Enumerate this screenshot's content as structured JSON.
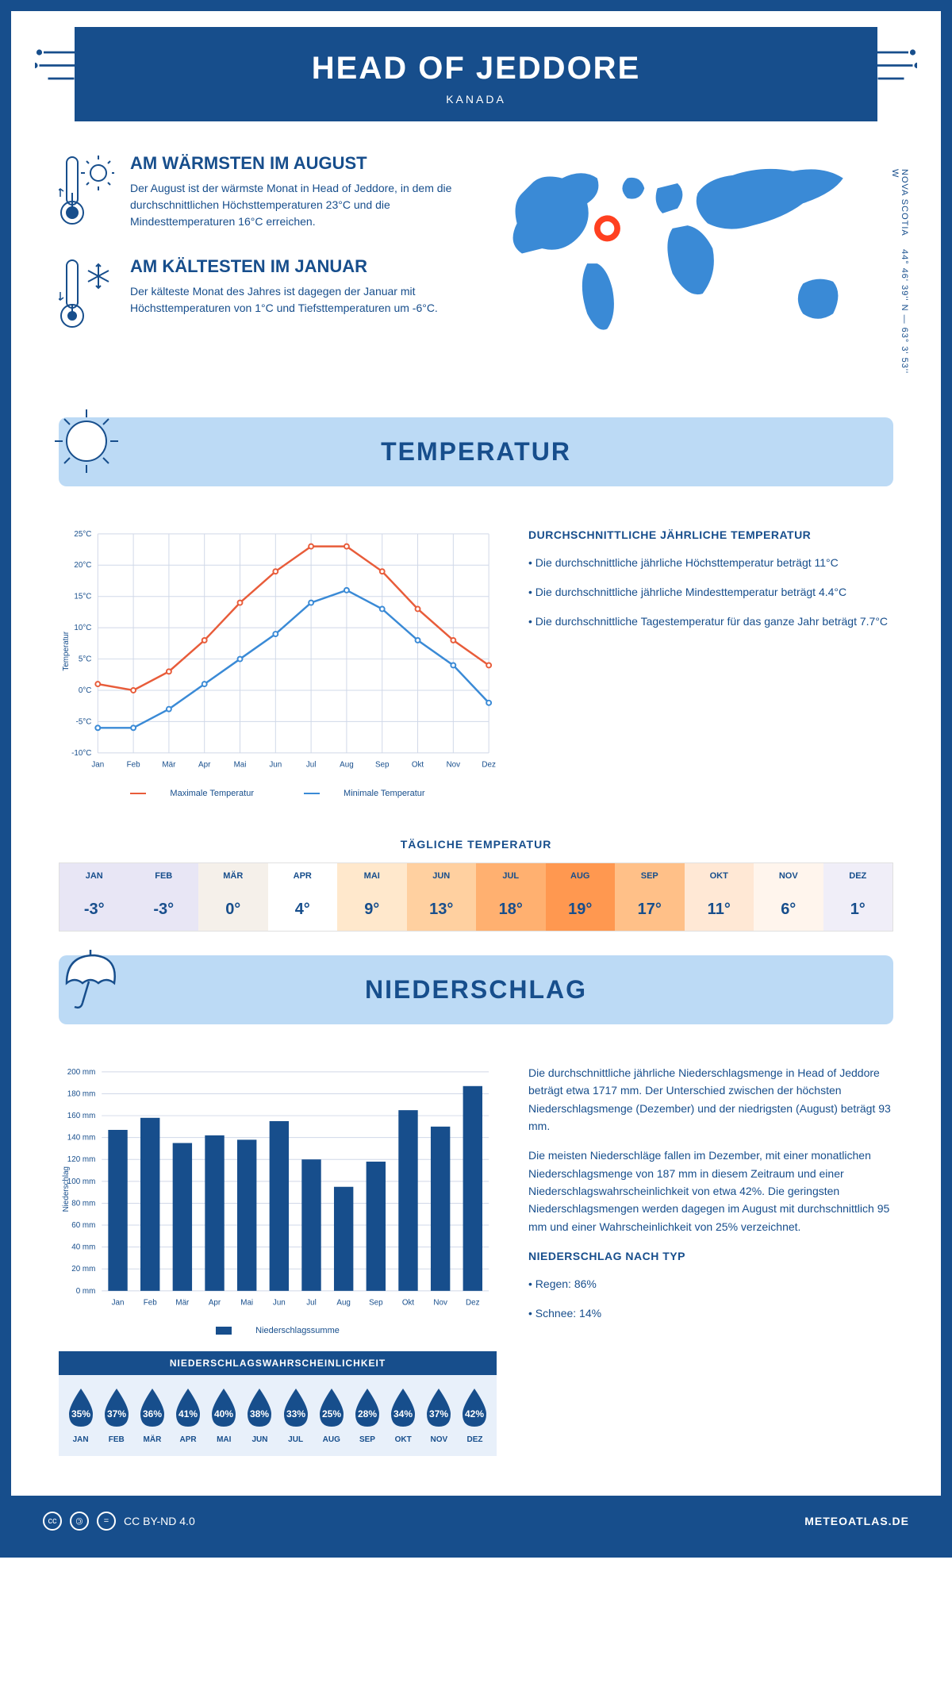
{
  "header": {
    "title": "HEAD OF JEDDORE",
    "subtitle": "KANADA"
  },
  "coords": {
    "region": "NOVA SCOTIA",
    "lat": "44° 46' 39'' N",
    "lon": "63° 3' 53'' W"
  },
  "facts": {
    "warm": {
      "heading": "AM WÄRMSTEN IM AUGUST",
      "text": "Der August ist der wärmste Monat in Head of Jeddore, in dem die durchschnittlichen Höchsttemperaturen 23°C und die Mindesttemperaturen 16°C erreichen."
    },
    "cold": {
      "heading": "AM KÄLTESTEN IM JANUAR",
      "text": "Der kälteste Monat des Jahres ist dagegen der Januar mit Höchsttemperaturen von 1°C und Tiefsttemperaturen um -6°C."
    }
  },
  "temperature_section": {
    "title": "TEMPERATUR",
    "chart": {
      "type": "line",
      "months": [
        "Jan",
        "Feb",
        "Mär",
        "Apr",
        "Mai",
        "Jun",
        "Jul",
        "Aug",
        "Sep",
        "Okt",
        "Nov",
        "Dez"
      ],
      "max_values": [
        1,
        0,
        3,
        8,
        14,
        19,
        23,
        23,
        19,
        13,
        8,
        4
      ],
      "min_values": [
        -6,
        -6,
        -3,
        1,
        5,
        9,
        14,
        16,
        13,
        8,
        4,
        -2
      ],
      "max_color": "#e85c3a",
      "min_color": "#3a8ad6",
      "ylim": [
        -10,
        25
      ],
      "ytick_step": 5,
      "ylabel": "Temperatur",
      "grid_color": "#d0d8e8",
      "background": "#ffffff",
      "legend_max": "Maximale Temperatur",
      "legend_min": "Minimale Temperatur"
    },
    "summary_heading": "DURCHSCHNITTLICHE JÄHRLICHE TEMPERATUR",
    "summary_points": [
      "• Die durchschnittliche jährliche Höchsttemperatur beträgt 11°C",
      "• Die durchschnittliche jährliche Mindesttemperatur beträgt 4.4°C",
      "• Die durchschnittliche Tagestemperatur für das ganze Jahr beträgt 7.7°C"
    ],
    "daily_title": "TÄGLICHE TEMPERATUR",
    "daily_temps": {
      "months": [
        "JAN",
        "FEB",
        "MÄR",
        "APR",
        "MAI",
        "JUN",
        "JUL",
        "AUG",
        "SEP",
        "OKT",
        "NOV",
        "DEZ"
      ],
      "values": [
        "-3°",
        "-3°",
        "0°",
        "4°",
        "9°",
        "13°",
        "18°",
        "19°",
        "17°",
        "11°",
        "6°",
        "1°"
      ],
      "colors": [
        "#e8e6f5",
        "#e8e6f5",
        "#f5f0ea",
        "#ffffff",
        "#ffe8cc",
        "#ffd0a0",
        "#ffb070",
        "#ff9850",
        "#ffc088",
        "#ffe8d5",
        "#fff5ed",
        "#f0eef8"
      ]
    }
  },
  "precip_section": {
    "title": "NIEDERSCHLAG",
    "chart": {
      "type": "bar",
      "months": [
        "Jan",
        "Feb",
        "Mär",
        "Apr",
        "Mai",
        "Jun",
        "Jul",
        "Aug",
        "Sep",
        "Okt",
        "Nov",
        "Dez"
      ],
      "values": [
        147,
        158,
        135,
        142,
        138,
        155,
        120,
        95,
        118,
        165,
        150,
        187
      ],
      "bar_color": "#174e8c",
      "ylim": [
        0,
        200
      ],
      "ytick_step": 20,
      "ylabel": "Niederschlag",
      "grid_color": "#d0d8e8",
      "legend": "Niederschlagssumme"
    },
    "text1": "Die durchschnittliche jährliche Niederschlagsmenge in Head of Jeddore beträgt etwa 1717 mm. Der Unterschied zwischen der höchsten Niederschlagsmenge (Dezember) und der niedrigsten (August) beträgt 93 mm.",
    "text2": "Die meisten Niederschläge fallen im Dezember, mit einer monatlichen Niederschlagsmenge von 187 mm in diesem Zeitraum und einer Niederschlagswahrscheinlichkeit von etwa 42%. Die geringsten Niederschlagsmengen werden dagegen im August mit durchschnittlich 95 mm und einer Wahrscheinlichkeit von 25% verzeichnet.",
    "by_type_heading": "NIEDERSCHLAG NACH TYP",
    "by_type": [
      "• Regen: 86%",
      "• Schnee: 14%"
    ],
    "prob_title": "NIEDERSCHLAGSWAHRSCHEINLICHKEIT",
    "probabilities": {
      "months": [
        "JAN",
        "FEB",
        "MÄR",
        "APR",
        "MAI",
        "JUN",
        "JUL",
        "AUG",
        "SEP",
        "OKT",
        "NOV",
        "DEZ"
      ],
      "values": [
        "35%",
        "37%",
        "36%",
        "41%",
        "40%",
        "38%",
        "33%",
        "25%",
        "28%",
        "34%",
        "37%",
        "42%"
      ]
    }
  },
  "footer": {
    "license": "CC BY-ND 4.0",
    "site": "METEOATLAS.DE"
  },
  "colors": {
    "primary": "#174e8c",
    "light_blue": "#bcdaf5",
    "accent_orange": "#e85c3a"
  }
}
